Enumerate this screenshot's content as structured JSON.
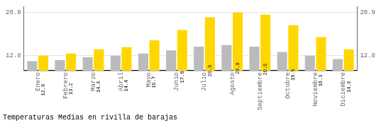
{
  "chart_data": {
    "type": "bar",
    "title": "Temperaturas Medias en rivilla de barajas",
    "categories": [
      "Enero",
      "Febrero",
      "Marzo",
      "Abril",
      "Mayo",
      "Junio",
      "Julio",
      "Agosto",
      "Septiembre",
      "Octubre",
      "Noviembre",
      "Diciembre"
    ],
    "series": [
      {
        "color": "#BBBBBB",
        "values": [
          11.8,
          12.0,
          12.5,
          12.8,
          13.2,
          13.8,
          14.5,
          14.8,
          14.5,
          13.5,
          12.8,
          12.2
        ]
      },
      {
        "color": "#FFD700",
        "values": [
          12.8,
          13.2,
          14.0,
          14.4,
          15.7,
          17.6,
          20.0,
          20.9,
          20.5,
          18.5,
          16.3,
          14.0
        ],
        "value_labels": [
          "12.8",
          "13.2",
          "14.0",
          "14.4",
          "15.7",
          "17.6",
          "20.0",
          "20.9",
          "20.5",
          "18.5",
          "16.3",
          "14.0"
        ],
        "data_labels": true
      }
    ],
    "ylim": [
      10.0,
      22.0
    ],
    "yticks": [
      12.8,
      20.9
    ],
    "y2lim": [
      10.0,
      22.0
    ],
    "y2ticks": [
      12.8,
      20.9
    ],
    "grid": true
  }
}
